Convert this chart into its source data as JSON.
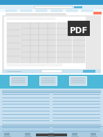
{
  "bg_main": "#cce4f5",
  "bg_light": "#ddeef8",
  "white": "#ffffff",
  "header_blue": "#3399cc",
  "header_light": "#e8f4fb",
  "nav_blue": "#5bb8dc",
  "page_bg": "#f0f0f0",
  "doc_white": "#ffffff",
  "doc_gray": "#e2e2e2",
  "doc_line": "#bbbbbb",
  "thumb_blue": "#4db8d8",
  "thumb_strip_blue": "#55aacc",
  "link_blue": "#4488bb",
  "link_section_blue": "#2277aa",
  "footer_blue": "#99cce0",
  "bottom_gray": "#b0ccd8",
  "scroll_gray": "#cccccc",
  "pdf_dark": "#1a1a1a",
  "toolbar_blue": "#66bbdd",
  "sep_line": "#aaccdd"
}
